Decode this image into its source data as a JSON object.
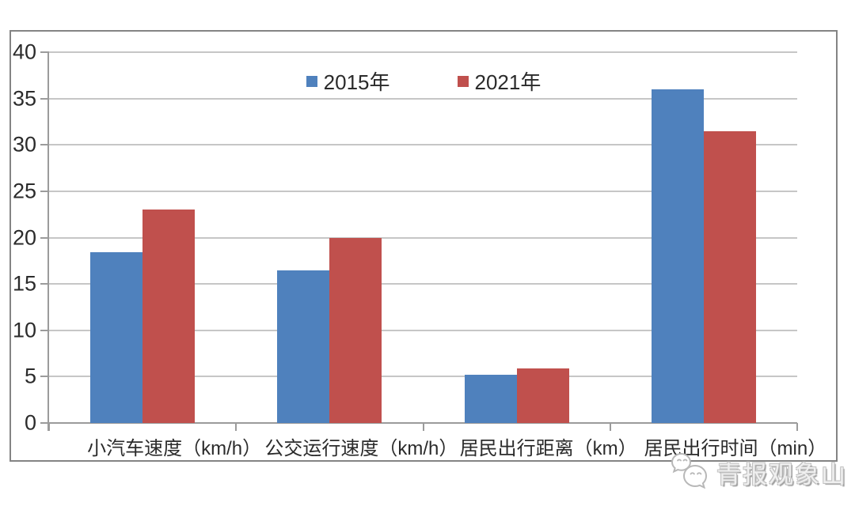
{
  "chart_data": {
    "type": "bar",
    "title": "",
    "categories": [
      "小汽车速度（km/h）",
      "公交运行速度（km/h）",
      "居民出行距离（km）",
      "居民出行时间（min）"
    ],
    "series": [
      {
        "name": "2015年",
        "color": "#4F81BD",
        "values": [
          18.4,
          16.5,
          5.2,
          36.0
        ]
      },
      {
        "name": "2021年",
        "color": "#C0504D",
        "values": [
          23.0,
          20.0,
          5.9,
          31.5
        ]
      }
    ],
    "xlabel": "",
    "ylabel": "",
    "ylim": [
      0,
      40
    ],
    "yticks": [
      0,
      5,
      10,
      15,
      20,
      25,
      30,
      35,
      40
    ],
    "grid": true,
    "legend_position": "top-center"
  },
  "watermark": {
    "text": "青报观象山",
    "icon": "wechat-icon"
  },
  "style": {
    "grid_color": "#c6c6c6",
    "axis_color": "#9b9b9b",
    "text_color": "#2b2b2b",
    "frame_border_color": "#848484",
    "background": "#ffffff"
  }
}
